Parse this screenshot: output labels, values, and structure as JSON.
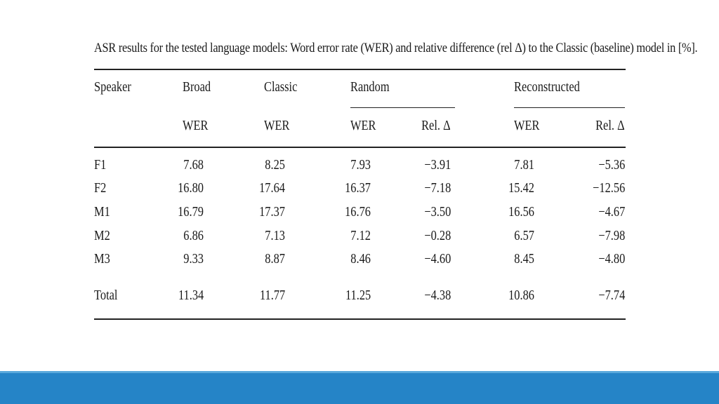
{
  "caption": "ASR results for the tested language models: Word error rate (WER) and relative difference (rel Δ) to the Classic (baseline) model in [%].",
  "header": {
    "speaker": "Speaker",
    "broad": "Broad",
    "classic": "Classic",
    "random": "Random",
    "reconstructed": "Reconstructed",
    "wer": "WER",
    "rel": "Rel. Δ"
  },
  "rows": [
    {
      "speaker": "F1",
      "broad": "7.68",
      "classic": "8.25",
      "random_wer": "7.93",
      "random_rel": "−3.91",
      "recon_wer": "7.81",
      "recon_rel": "−5.36"
    },
    {
      "speaker": "F2",
      "broad": "16.80",
      "classic": "17.64",
      "random_wer": "16.37",
      "random_rel": "−7.18",
      "recon_wer": "15.42",
      "recon_rel": "−12.56"
    },
    {
      "speaker": "M1",
      "broad": "16.79",
      "classic": "17.37",
      "random_wer": "16.76",
      "random_rel": "−3.50",
      "recon_wer": "16.56",
      "recon_rel": "−4.67"
    },
    {
      "speaker": "M2",
      "broad": "6.86",
      "classic": "7.13",
      "random_wer": "7.12",
      "random_rel": "−0.28",
      "recon_wer": "6.57",
      "recon_rel": "−7.98"
    },
    {
      "speaker": "M3",
      "broad": "9.33",
      "classic": "8.87",
      "random_wer": "8.46",
      "random_rel": "−4.60",
      "recon_wer": "8.45",
      "recon_rel": "−4.80"
    }
  ],
  "total": {
    "speaker": "Total",
    "broad": "11.34",
    "classic": "11.77",
    "random_wer": "11.25",
    "random_rel": "−4.38",
    "recon_wer": "10.86",
    "recon_rel": "−7.74"
  },
  "colors": {
    "band": "#2584c7",
    "band_line": "#5aa9dc",
    "text": "#1a1a1a"
  }
}
